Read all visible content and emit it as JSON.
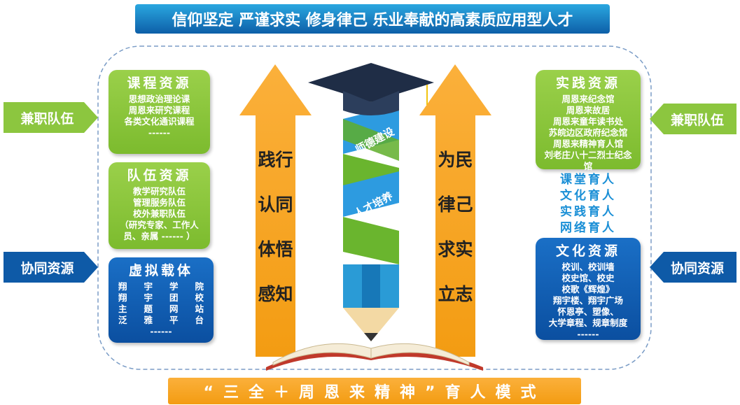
{
  "header": {
    "title": "信仰坚定 严谨求实 修身律己 乐业奉献的高素质应用型人才"
  },
  "footer": {
    "title": "“三全＋周恩来精神”育人模式"
  },
  "left_panels": [
    {
      "title": "课程资源",
      "items": [
        "思想政治理论课",
        "周恩来研究课程",
        "各类文化通识课程",
        "------"
      ]
    },
    {
      "title": "队伍资源",
      "items": [
        "教学研究队伍",
        "管理服务队伍",
        "校外兼职队伍",
        "（研究专家、工作人员、亲属 ------ ）"
      ]
    },
    {
      "title": "虚拟载体",
      "items": [
        "翔宇学院",
        "翔宇团校",
        "主题网站",
        "泛雅平台",
        "------"
      ]
    }
  ],
  "right_panels": [
    {
      "title": "实践资源",
      "items": [
        "周恩来纪念馆",
        "周恩来故居",
        "周恩来童年读书处",
        "苏皖边区政府纪念馆",
        "周恩来精神育人馆",
        "刘老庄八十二烈士纪念馆",
        "------"
      ]
    },
    {
      "title": "文化资源",
      "items": [
        "校训、校训墙",
        "校史馆、校史",
        "校歌《辉煌》",
        "翔宇楼、翔宇广场",
        "怀恩亭、塑像、",
        "大学章程、规章制度",
        "------"
      ]
    }
  ],
  "education_modes": [
    "课堂育人",
    "文化育人",
    "实践育人",
    "网络育人"
  ],
  "side_arrows": {
    "left": [
      "兼职队伍",
      "协同资源"
    ],
    "right": [
      "兼职队伍",
      "协同资源"
    ]
  },
  "center": {
    "left_arrow": [
      "践行",
      "认同",
      "体悟",
      "感知"
    ],
    "right_arrow": [
      "为民",
      "律己",
      "求实",
      "立志"
    ],
    "helix": [
      "师德建设",
      "人才培养"
    ]
  }
}
